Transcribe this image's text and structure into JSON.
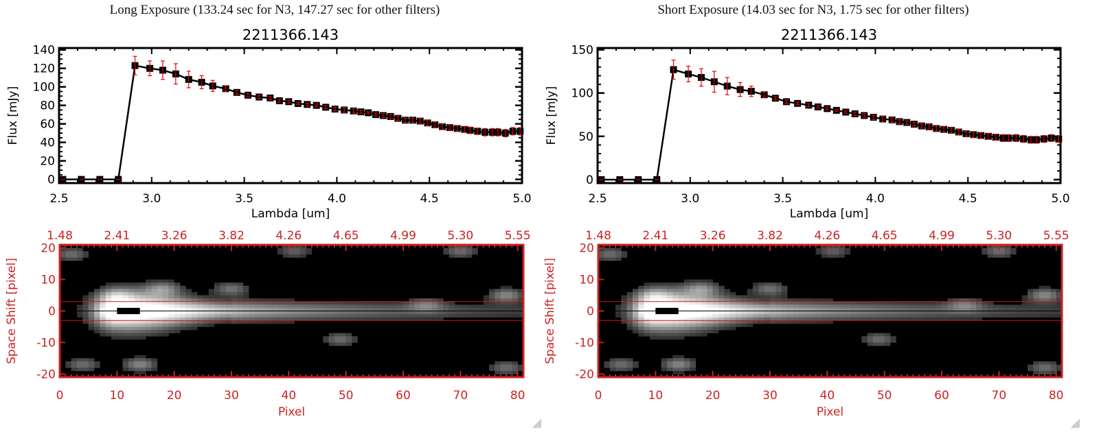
{
  "panels": [
    {
      "id": "long",
      "exposure_title": "Long Exposure (133.24 sec for N3, 147.27 sec for other filters)",
      "object_id": "2211366.143"
    },
    {
      "id": "short",
      "exposure_title": "Short Exposure (14.03 sec for N3, 1.75 sec for other filters)",
      "object_id": "2211366.143"
    }
  ],
  "colors": {
    "axis_dark": "#000000",
    "error_bar": "#e00000",
    "image_axis": "#cc2222",
    "extraction_line": "#e01010"
  },
  "chart_data": [
    {
      "type": "line",
      "title": "2211366.143",
      "xlabel": "Lambda [um]",
      "ylabel": "Flux [mJy]",
      "xlim": [
        2.5,
        5.0
      ],
      "ylim": [
        -4,
        142
      ],
      "xticks": [
        2.5,
        3.0,
        3.5,
        4.0,
        4.5,
        5.0
      ],
      "xtick_labels": [
        "2.5",
        "3.0",
        "3.5",
        "4.0",
        "4.5",
        "5.0"
      ],
      "yticks": [
        0,
        20,
        40,
        60,
        80,
        100,
        120,
        140
      ],
      "ytick_labels": [
        "0",
        "20",
        "40",
        "60",
        "80",
        "100",
        "120",
        "140"
      ],
      "y_minor_step": 5,
      "x_minor_step": 0.1,
      "grid": false,
      "series": [
        {
          "name": "Flux",
          "x": [
            2.52,
            2.62,
            2.72,
            2.82,
            2.91,
            2.99,
            3.06,
            3.13,
            3.2,
            3.27,
            3.33,
            3.4,
            3.46,
            3.52,
            3.58,
            3.64,
            3.69,
            3.74,
            3.79,
            3.84,
            3.89,
            3.94,
            3.99,
            4.04,
            4.09,
            4.13,
            4.17,
            4.21,
            4.25,
            4.29,
            4.33,
            4.37,
            4.41,
            4.45,
            4.49,
            4.53,
            4.57,
            4.61,
            4.65,
            4.69,
            4.72,
            4.76,
            4.8,
            4.84,
            4.87,
            4.91,
            4.95,
            4.99
          ],
          "y": [
            0,
            0,
            0,
            0,
            123,
            120,
            118,
            114,
            108,
            105,
            101,
            98,
            94,
            91,
            89,
            88,
            85,
            84,
            82,
            81,
            80,
            78,
            76,
            75,
            74,
            73,
            72,
            70,
            69,
            68,
            66,
            64,
            64,
            63,
            61,
            59,
            57,
            56,
            55,
            54,
            53,
            52,
            51,
            51,
            51,
            50,
            52,
            52
          ],
          "yerr": [
            0,
            0,
            0,
            0,
            10,
            8,
            10,
            11,
            9,
            7,
            6,
            3,
            2,
            1.5,
            1.5,
            1.5,
            1.5,
            1.5,
            1,
            1.5,
            1.5,
            1.5,
            2,
            2.5,
            2.5,
            1.5,
            1,
            1.5,
            2,
            2,
            2.5,
            2.5,
            2.5,
            3,
            3,
            3,
            3,
            3,
            3,
            3,
            3.5,
            3.5,
            4,
            4,
            4,
            4,
            4,
            4
          ]
        }
      ]
    },
    {
      "type": "line",
      "title": "2211366.143",
      "xlabel": "Lambda [um]",
      "ylabel": "Flux [mJy]",
      "xlim": [
        2.5,
        5.0
      ],
      "ylim": [
        -4,
        152
      ],
      "xticks": [
        2.5,
        3.0,
        3.5,
        4.0,
        4.5,
        5.0
      ],
      "xtick_labels": [
        "2.5",
        "3.0",
        "3.5",
        "4.0",
        "4.5",
        "5.0"
      ],
      "yticks": [
        0,
        50,
        100,
        150
      ],
      "ytick_labels": [
        "0",
        "50",
        "100",
        "150"
      ],
      "y_minor_step": 10,
      "x_minor_step": 0.1,
      "grid": false,
      "series": [
        {
          "name": "Flux",
          "x": [
            2.52,
            2.62,
            2.72,
            2.82,
            2.91,
            2.99,
            3.06,
            3.13,
            3.2,
            3.27,
            3.33,
            3.4,
            3.46,
            3.52,
            3.58,
            3.64,
            3.69,
            3.74,
            3.79,
            3.84,
            3.89,
            3.94,
            3.99,
            4.04,
            4.09,
            4.13,
            4.17,
            4.21,
            4.25,
            4.29,
            4.33,
            4.37,
            4.41,
            4.45,
            4.49,
            4.53,
            4.57,
            4.61,
            4.65,
            4.69,
            4.72,
            4.76,
            4.8,
            4.84,
            4.87,
            4.91,
            4.95,
            4.99
          ],
          "y": [
            0,
            0,
            0,
            0,
            127,
            122,
            118,
            113,
            108,
            104,
            102,
            98,
            94,
            90,
            88,
            86,
            84,
            82,
            80,
            78,
            76,
            74,
            72,
            70,
            69,
            67,
            66,
            64,
            62,
            61,
            59,
            58,
            57,
            55,
            53,
            52,
            51,
            50,
            49,
            48,
            48,
            48,
            47,
            46,
            46,
            47,
            48,
            47
          ],
          "yerr": [
            0,
            0,
            0,
            0,
            11,
            9,
            10,
            12,
            10,
            8,
            6,
            3,
            2,
            2,
            1.5,
            1.5,
            1.5,
            1.5,
            1,
            1.5,
            2,
            2,
            2.5,
            3,
            3,
            2.5,
            2,
            2,
            2.5,
            3,
            3,
            3,
            3,
            3,
            3,
            3.5,
            3.5,
            3.5,
            3.5,
            4,
            4,
            4,
            4,
            4,
            4,
            4,
            4,
            4
          ]
        }
      ]
    },
    {
      "type": "heatmap",
      "xlabel": "Pixel",
      "ylabel": "Space Shift [pixel]",
      "xlim": [
        0,
        81
      ],
      "ylim": [
        -21,
        21
      ],
      "xticks": [
        0,
        10,
        20,
        30,
        40,
        50,
        60,
        70,
        80
      ],
      "xtick_labels": [
        "0",
        "10",
        "20",
        "30",
        "40",
        "50",
        "60",
        "70",
        "80"
      ],
      "yticks": [
        -20,
        -10,
        0,
        10,
        20
      ],
      "ytick_labels": [
        "-20",
        "-10",
        "0",
        "10",
        "20"
      ],
      "top_axis_labels": [
        "1.48",
        "2.41",
        "3.26",
        "3.82",
        "4.26",
        "4.65",
        "4.99",
        "5.30",
        "5.55"
      ],
      "extraction_window": [
        -3,
        3
      ],
      "center_line": 0,
      "source_peak_pixel": 12,
      "blobs": [
        {
          "x": 2,
          "y": 18,
          "strength": 0.35
        },
        {
          "x": 4,
          "y": -17,
          "strength": 0.35
        },
        {
          "x": 14,
          "y": -17,
          "strength": 0.45
        },
        {
          "x": 10,
          "y": 5,
          "strength": 0.3
        },
        {
          "x": 18,
          "y": 7,
          "strength": 0.4
        },
        {
          "x": 30,
          "y": 7,
          "strength": 0.35
        },
        {
          "x": 41,
          "y": 19,
          "strength": 0.3
        },
        {
          "x": 49,
          "y": -9,
          "strength": 0.35
        },
        {
          "x": 64,
          "y": 2,
          "strength": 0.3
        },
        {
          "x": 70,
          "y": 19,
          "strength": 0.35
        },
        {
          "x": 78,
          "y": 5,
          "strength": 0.45
        },
        {
          "x": 78,
          "y": -18,
          "strength": 0.35
        }
      ],
      "grid": false
    }
  ]
}
